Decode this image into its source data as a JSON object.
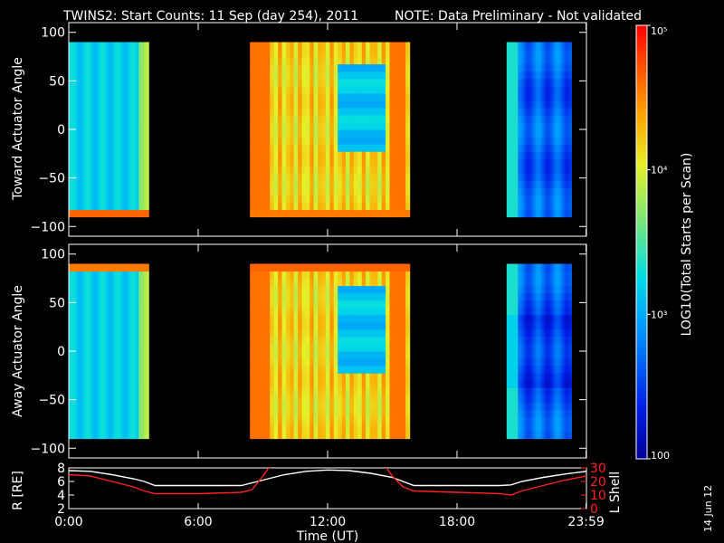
{
  "header": {
    "title": "TWINS2: Start Counts: 11 Sep (day 254), 2011",
    "note": "NOTE: Data Preliminary - Not validated",
    "note_color": "#ff2020"
  },
  "footer": {
    "date_stamp": "14 Jun 12"
  },
  "colorbar": {
    "label": "LOG10(Total Starts per Scan)",
    "tick_labels": [
      "100",
      "10³",
      "10⁴",
      "10⁵"
    ],
    "tick_values": [
      100,
      1000,
      10000,
      100000
    ],
    "range": [
      100,
      100000
    ],
    "scale": "log"
  },
  "chart_data": [
    {
      "type": "heatmap",
      "panel": "top",
      "ylabel": "Toward Actuator Angle",
      "ylim": [
        -110,
        110
      ],
      "yticks": [
        -100,
        -50,
        0,
        50,
        100
      ],
      "xlim": [
        0,
        24
      ],
      "data_blocks_hours": [
        [
          0,
          3.7
        ],
        [
          8.4,
          15.8
        ],
        [
          20.3,
          23.3
        ]
      ],
      "angle_range": [
        -90,
        90
      ]
    },
    {
      "type": "heatmap",
      "panel": "middle",
      "ylabel": "Away Actuator Angle",
      "ylim": [
        -110,
        110
      ],
      "yticks": [
        -100,
        -50,
        0,
        50,
        100
      ],
      "xlim": [
        0,
        24
      ],
      "data_blocks_hours": [
        [
          0,
          3.7
        ],
        [
          8.4,
          15.8
        ],
        [
          20.3,
          23.3
        ]
      ],
      "angle_range": [
        -90,
        90
      ]
    },
    {
      "type": "line",
      "panel": "bottom",
      "xlabel": "Time (UT)",
      "xticks": [
        "0:00",
        "6:00",
        "12:00",
        "18:00",
        "23:59"
      ],
      "xtick_hours": [
        0,
        6,
        12,
        18,
        23.983
      ],
      "left_axis": {
        "label": "R [RE]",
        "ylim": [
          2,
          8
        ],
        "ticks": [
          "2",
          "4",
          "6",
          "8"
        ],
        "color": "#ffffff"
      },
      "right_axis": {
        "label": "L Shell",
        "ylim": [
          0,
          30
        ],
        "ticks": [
          "0",
          "10",
          "20",
          "30"
        ],
        "color": "#ff2020"
      },
      "series": [
        {
          "axis": "left",
          "color": "#ffffff",
          "x": [
            0,
            1,
            2,
            3,
            3.5,
            4,
            6,
            8,
            9,
            10,
            11,
            12,
            13,
            14,
            15,
            16,
            18,
            20,
            20.5,
            21,
            22,
            23,
            24
          ],
          "y": [
            7.6,
            7.5,
            7.0,
            6.4,
            6.0,
            5.4,
            5.4,
            5.4,
            6.2,
            7.0,
            7.5,
            7.7,
            7.6,
            7.2,
            6.6,
            5.4,
            5.4,
            5.4,
            5.5,
            6.0,
            6.6,
            7.1,
            7.5
          ]
        },
        {
          "axis": "right",
          "color": "#ff2020",
          "x": [
            0,
            1,
            2,
            3,
            3.5,
            4,
            6,
            8,
            8.5,
            9,
            9.5,
            14.5,
            15,
            15.5,
            16,
            18,
            20,
            20.5,
            21,
            22,
            23,
            24
          ],
          "y": [
            25,
            24,
            20,
            16,
            13,
            11,
            11,
            12,
            14,
            24,
            35,
            35,
            24,
            16,
            13,
            12,
            11,
            10,
            13,
            17,
            21,
            24
          ]
        }
      ]
    }
  ]
}
